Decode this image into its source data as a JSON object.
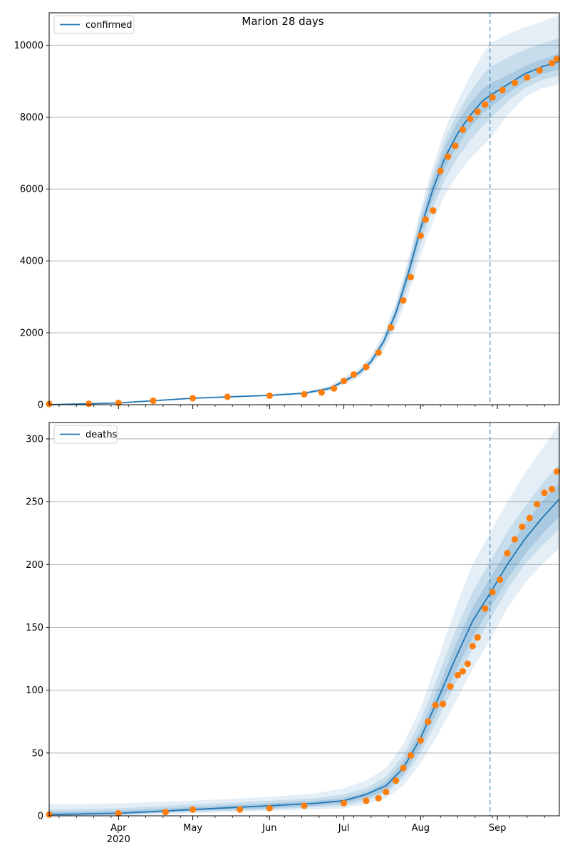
{
  "figure": {
    "title": "Marion 28 days",
    "forecast_start": "2020-08-29",
    "colors": {
      "model_line": "#1f77b4",
      "band": "#1f77b4",
      "observed": "#ff7f0e",
      "grid": "#b0b0b0",
      "forecast_marker": "#1f77b4"
    }
  },
  "chart_data": [
    {
      "type": "line",
      "legend": [
        "confirmed"
      ],
      "legend_position": "top-left",
      "grid": "y-only",
      "xlim": [
        "2020-03-04",
        "2020-09-26"
      ],
      "ylim": [
        0,
        10900
      ],
      "yticks": [
        0,
        2000,
        4000,
        6000,
        8000,
        10000
      ],
      "xtick_labels": [],
      "model": {
        "name": "confirmed",
        "x": [
          "2020-03-04",
          "2020-04-01",
          "2020-05-01",
          "2020-06-01",
          "2020-06-15",
          "2020-06-25",
          "2020-07-01",
          "2020-07-07",
          "2020-07-12",
          "2020-07-17",
          "2020-07-22",
          "2020-07-27",
          "2020-08-01",
          "2020-08-06",
          "2020-08-11",
          "2020-08-16",
          "2020-08-21",
          "2020-08-26",
          "2020-08-29",
          "2020-09-05",
          "2020-09-12",
          "2020-09-19",
          "2020-09-26"
        ],
        "y": [
          0,
          50,
          180,
          260,
          320,
          450,
          650,
          880,
          1200,
          1750,
          2550,
          3650,
          4900,
          6000,
          6900,
          7550,
          8050,
          8450,
          8600,
          8900,
          9200,
          9400,
          9550
        ],
        "bands": [
          {
            "lower": [
              0,
              45,
              160,
              230,
              280,
              380,
              560,
              760,
              1050,
              1500,
              2150,
              3050,
              4150,
              5100,
              5850,
              6400,
              6850,
              7200,
              7400,
              8050,
              8550,
              8800,
              8900
            ],
            "upper": [
              0,
              55,
              200,
              290,
              360,
              520,
              760,
              1010,
              1360,
              1980,
              2850,
              4050,
              5450,
              6650,
              7700,
              8450,
              9150,
              9750,
              10050,
              10300,
              10500,
              10650,
              10850
            ]
          },
          {
            "lower": [
              0,
              47,
              168,
              242,
              296,
              405,
              595,
              810,
              1110,
              1590,
              2300,
              3280,
              4450,
              5480,
              6280,
              6880,
              7350,
              7750,
              7950,
              8420,
              8800,
              9030,
              9150
            ],
            "upper": [
              0,
              53,
              193,
              278,
              343,
              495,
              710,
              955,
              1290,
              1880,
              2740,
              3910,
              5270,
              6440,
              7410,
              8120,
              8700,
              9170,
              9390,
              9650,
              9870,
              10050,
              10200
            ]
          },
          {
            "lower": [
              0,
              48,
              174,
              251,
              308,
              428,
              623,
              845,
              1155,
              1680,
              2440,
              3480,
              4680,
              5740,
              6600,
              7220,
              7710,
              8110,
              8270,
              8640,
              8980,
              9200,
              9330
            ],
            "upper": [
              0,
              52,
              186,
              269,
              332,
              472,
              677,
              915,
              1245,
              1820,
              2660,
              3820,
              5120,
              6260,
              7200,
              7880,
              8390,
              8790,
              8930,
              9160,
              9420,
              9600,
              9770
            ]
          }
        ]
      },
      "observed": {
        "x": [
          "2020-03-04",
          "2020-03-20",
          "2020-04-01",
          "2020-04-15",
          "2020-05-01",
          "2020-05-15",
          "2020-06-01",
          "2020-06-15",
          "2020-06-22",
          "2020-06-27",
          "2020-07-01",
          "2020-07-05",
          "2020-07-10",
          "2020-07-15",
          "2020-07-20",
          "2020-07-25",
          "2020-07-28",
          "2020-08-01",
          "2020-08-03",
          "2020-08-06",
          "2020-08-09",
          "2020-08-12",
          "2020-08-15",
          "2020-08-18",
          "2020-08-21",
          "2020-08-24",
          "2020-08-27",
          "2020-08-30",
          "2020-09-03",
          "2020-09-08",
          "2020-09-13",
          "2020-09-18",
          "2020-09-23",
          "2020-09-25"
        ],
        "y": [
          20,
          25,
          50,
          110,
          180,
          220,
          250,
          290,
          340,
          450,
          660,
          840,
          1050,
          1450,
          2150,
          2900,
          3550,
          4700,
          5150,
          5400,
          6500,
          6900,
          7200,
          7650,
          7950,
          8150,
          8350,
          8550,
          8750,
          8950,
          9100,
          9300,
          9500,
          9620
        ]
      }
    },
    {
      "type": "line",
      "legend": [
        "deaths"
      ],
      "legend_position": "top-left",
      "grid": "y-only",
      "xlim": [
        "2020-03-04",
        "2020-09-26"
      ],
      "ylim": [
        0,
        313
      ],
      "yticks": [
        0,
        50,
        100,
        150,
        200,
        250,
        300
      ],
      "xtick_labels": [
        "Apr\n2020",
        "May",
        "Jun",
        "Jul",
        "Aug",
        "Sep"
      ],
      "model": {
        "name": "deaths",
        "x": [
          "2020-03-04",
          "2020-04-01",
          "2020-05-01",
          "2020-06-01",
          "2020-06-20",
          "2020-07-01",
          "2020-07-10",
          "2020-07-18",
          "2020-07-25",
          "2020-08-01",
          "2020-08-08",
          "2020-08-15",
          "2020-08-22",
          "2020-08-29",
          "2020-09-05",
          "2020-09-12",
          "2020-09-19",
          "2020-09-26"
        ],
        "y": [
          1,
          2,
          5,
          8,
          10,
          12,
          17,
          24,
          38,
          62,
          93,
          125,
          155,
          177,
          200,
          220,
          237,
          252
        ],
        "bands": [
          {
            "lower": [
              0,
              0,
              2,
              4,
              5,
              6,
              9,
              14,
              24,
              42,
              65,
              90,
              117,
              140,
              165,
              185,
              200,
              213
            ],
            "upper": [
              9,
              10,
              12,
              15,
              18,
              22,
              28,
              38,
              57,
              86,
              125,
              165,
              200,
              225,
              250,
              272,
              292,
              312
            ]
          },
          {
            "lower": [
              0,
              1,
              3,
              5,
              7,
              8,
              12,
              18,
              30,
              50,
              77,
              105,
              133,
              156,
              180,
              200,
              215,
              228
            ],
            "upper": [
              5,
              6,
              9,
              12,
              14,
              17,
              22,
              31,
              48,
              76,
              111,
              147,
              178,
              202,
              226,
              246,
              264,
              280
            ]
          },
          {
            "lower": [
              0,
              1,
              4,
              6,
              8,
              10,
              14,
              20,
              33,
              55,
              84,
              114,
              142,
              165,
              188,
              208,
              224,
              238
            ],
            "upper": [
              3,
              4,
              7,
              10,
              12,
              14,
              19,
              27,
              43,
              68,
              101,
              136,
              166,
              189,
              212,
              232,
              250,
              265
            ]
          }
        ]
      },
      "observed": {
        "x": [
          "2020-03-04",
          "2020-04-01",
          "2020-04-20",
          "2020-05-01",
          "2020-05-20",
          "2020-06-01",
          "2020-06-15",
          "2020-07-01",
          "2020-07-10",
          "2020-07-15",
          "2020-07-18",
          "2020-07-22",
          "2020-07-25",
          "2020-07-28",
          "2020-08-01",
          "2020-08-04",
          "2020-08-07",
          "2020-08-10",
          "2020-08-13",
          "2020-08-16",
          "2020-08-18",
          "2020-08-20",
          "2020-08-22",
          "2020-08-24",
          "2020-08-27",
          "2020-08-30",
          "2020-09-02",
          "2020-09-05",
          "2020-09-08",
          "2020-09-11",
          "2020-09-14",
          "2020-09-17",
          "2020-09-20",
          "2020-09-23",
          "2020-09-25"
        ],
        "y": [
          1,
          2,
          3,
          5,
          5,
          6,
          8,
          10,
          12,
          14,
          19,
          28,
          38,
          48,
          60,
          75,
          88,
          89,
          103,
          112,
          115,
          121,
          135,
          142,
          165,
          178,
          188,
          209,
          220,
          230,
          237,
          248,
          257,
          260,
          274
        ]
      }
    }
  ]
}
